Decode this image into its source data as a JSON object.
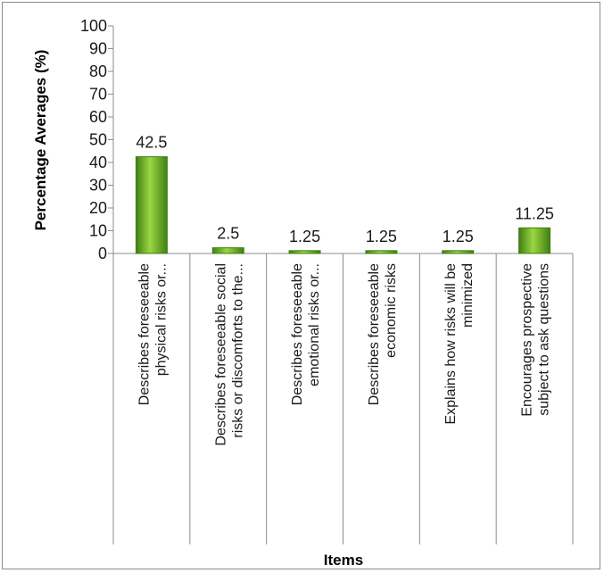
{
  "chart_data": {
    "type": "bar",
    "xlabel": "Items",
    "ylabel": "Percentage Averages (%)",
    "ylim": [
      0,
      100
    ],
    "ytick_step": 10,
    "grid": false,
    "categories": [
      [
        "Describes foreseeable",
        "physical risks or..."
      ],
      [
        "Describes foreseeable social",
        "risks or discomforts to the..."
      ],
      [
        "Describes foreseeable",
        "emotional risks or..."
      ],
      [
        "Describes foreseeable",
        "economic risks"
      ],
      [
        "Explains how risks will be",
        "minimized"
      ],
      [
        "Encourages prospective",
        "subject to ask questions"
      ]
    ],
    "values": [
      42.5,
      2.5,
      1.25,
      1.25,
      1.25,
      11.25
    ],
    "data_labels": [
      "42.5",
      "2.5",
      "1.25",
      "1.25",
      "1.25",
      "11.25"
    ],
    "bar_color_dark": "#3f7f14",
    "bar_color_light": "#9bd642"
  }
}
